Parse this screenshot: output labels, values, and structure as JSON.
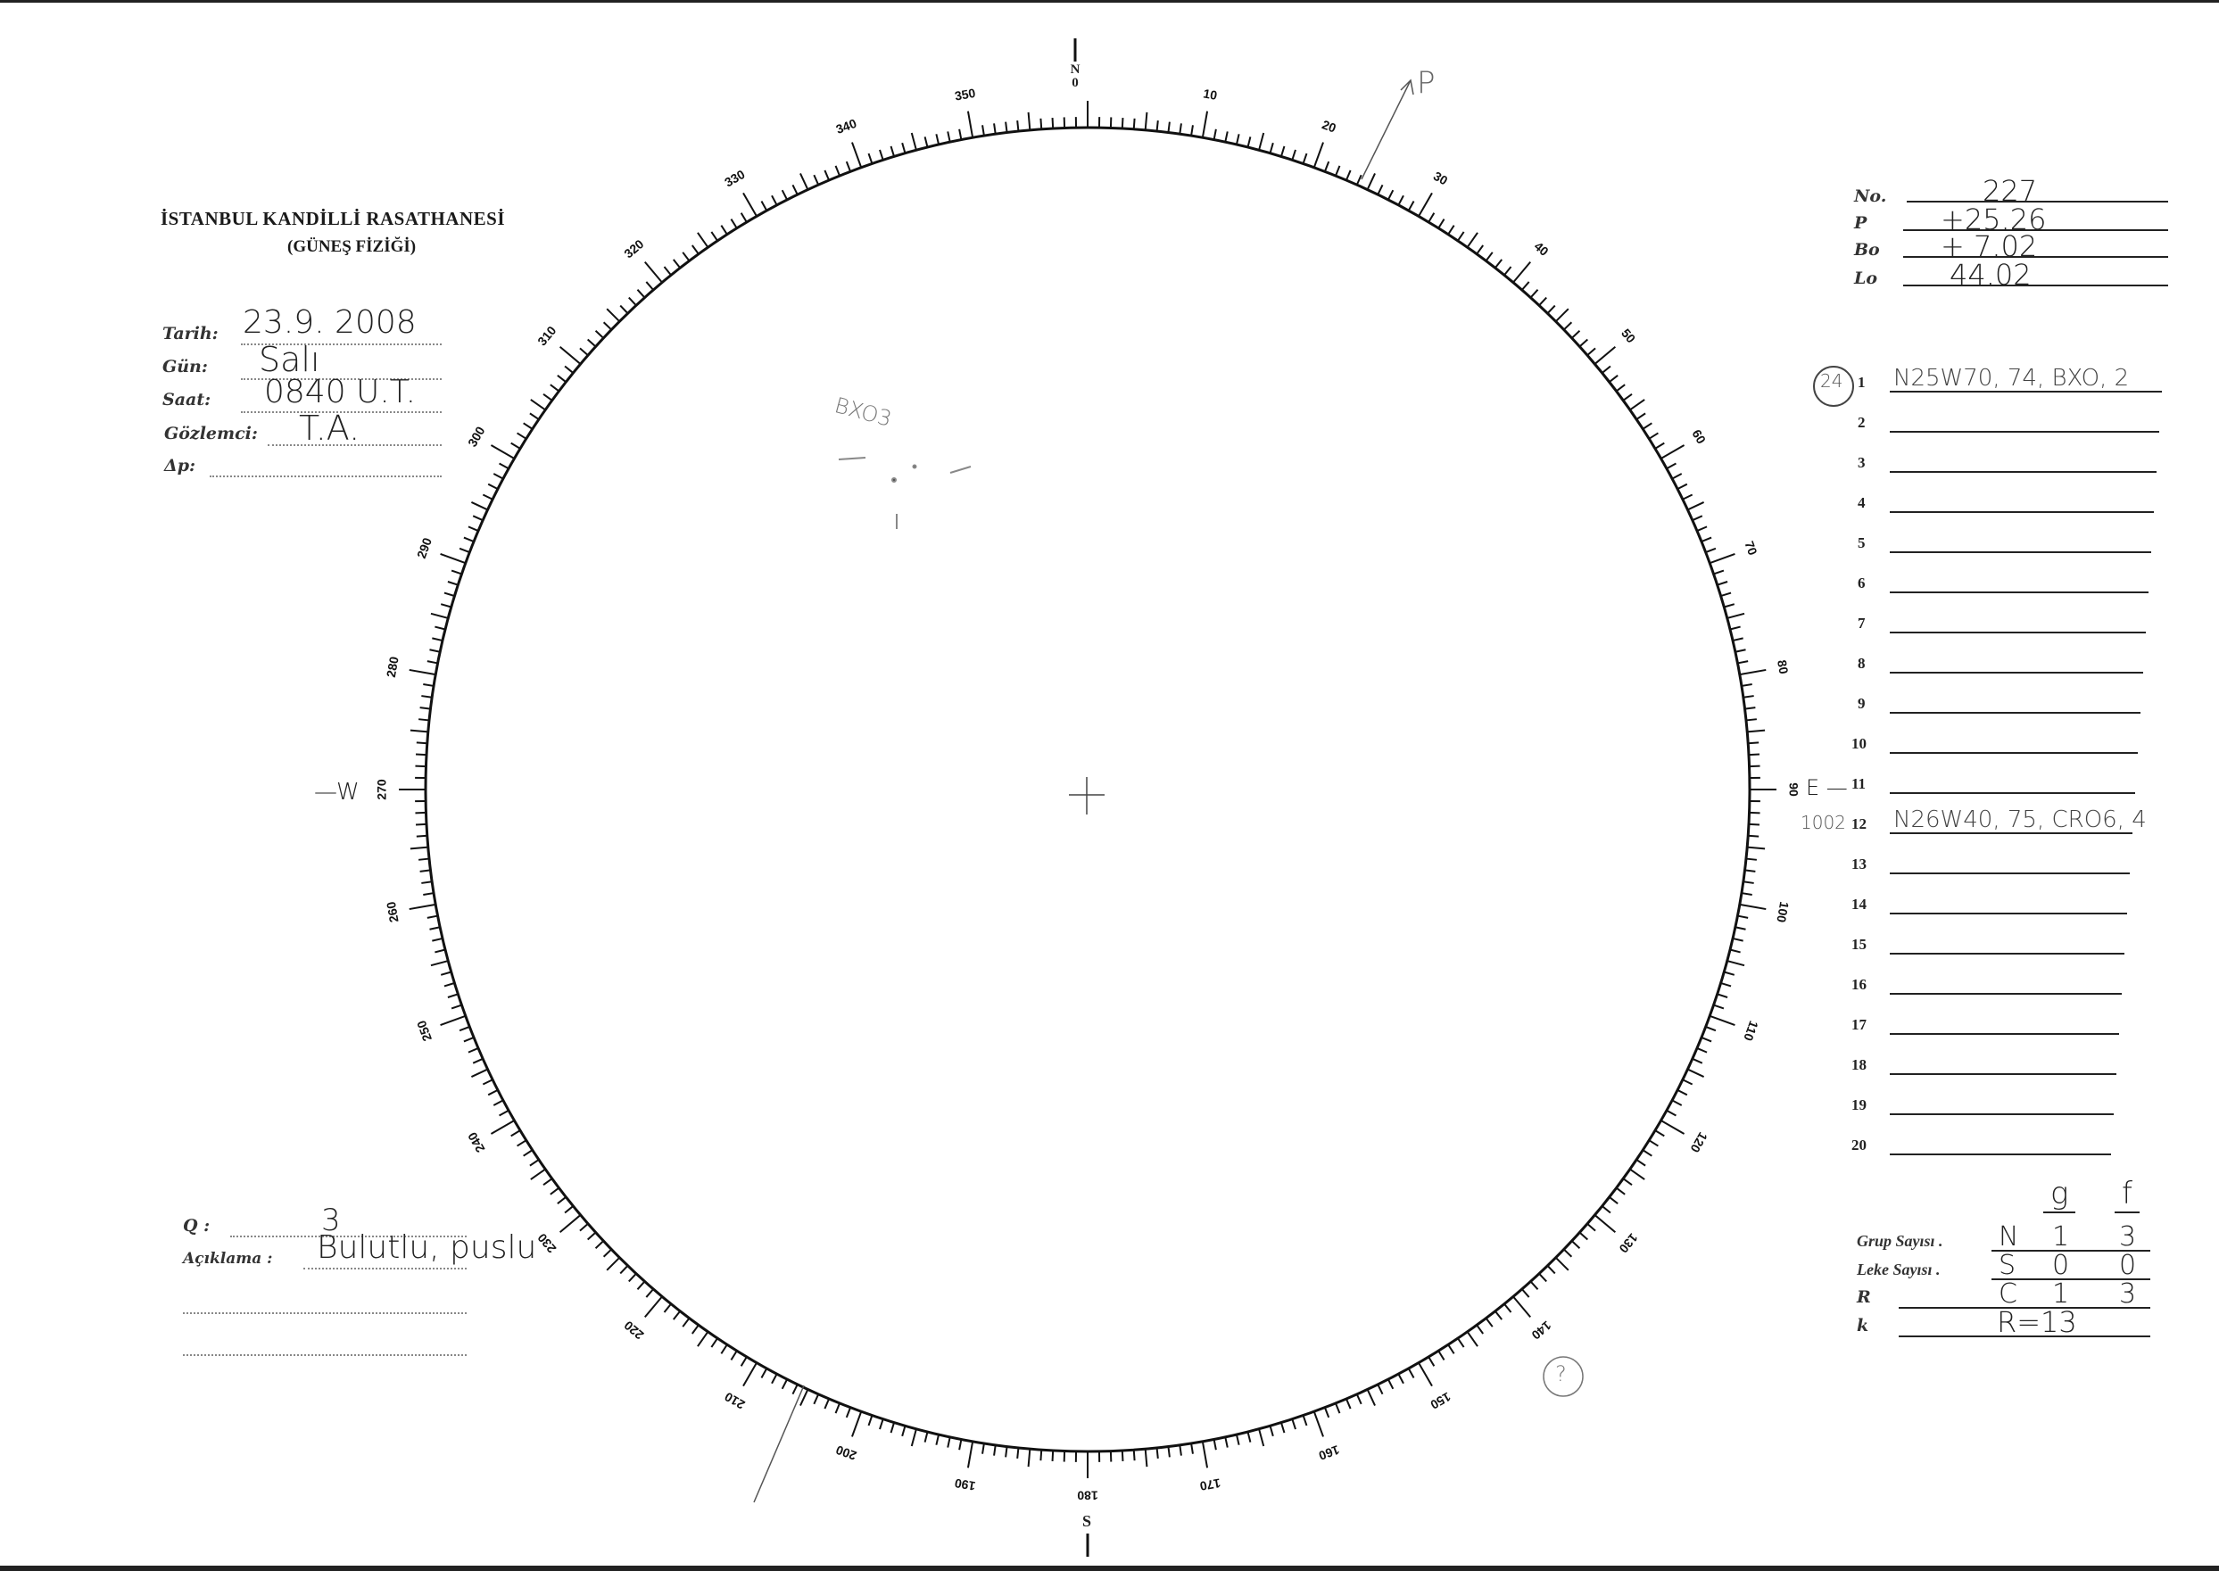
{
  "header": {
    "institution": "İSTANBUL KANDİLLİ RASATHANESİ",
    "department": "(GÜNEŞ FİZİĞİ)"
  },
  "observation": {
    "date_label": "Tarih:",
    "date_value": "23.9. 2008",
    "day_label": "Gün:",
    "day_value": "Salı",
    "time_label": "Saat:",
    "time_value": "0840 U.T.",
    "observer_label": "Gözlemci:",
    "observer_value": "T.A.",
    "delta_p_label": "Δp:",
    "delta_p_value": ""
  },
  "ephemeris": {
    "no_label": "No.",
    "no_value": "227",
    "p_label": "P",
    "p_value": "+25.26",
    "bo_label": "Bo",
    "bo_value": "+ 7.02",
    "lo_label": "Lo",
    "lo_value": "44.02"
  },
  "groups": [
    {
      "n": "1",
      "value": "N25W70, 74, BXO, 2",
      "mark": "24"
    },
    {
      "n": "2",
      "value": ""
    },
    {
      "n": "3",
      "value": ""
    },
    {
      "n": "4",
      "value": ""
    },
    {
      "n": "5",
      "value": ""
    },
    {
      "n": "6",
      "value": ""
    },
    {
      "n": "7",
      "value": ""
    },
    {
      "n": "8",
      "value": ""
    },
    {
      "n": "9",
      "value": ""
    },
    {
      "n": "10",
      "value": ""
    },
    {
      "n": "11",
      "value": ""
    },
    {
      "n": "12",
      "value": "N26W40, 75, CRO6, 4",
      "mark": "1002"
    },
    {
      "n": "13",
      "value": ""
    },
    {
      "n": "14",
      "value": ""
    },
    {
      "n": "15",
      "value": ""
    },
    {
      "n": "16",
      "value": ""
    },
    {
      "n": "17",
      "value": ""
    },
    {
      "n": "18",
      "value": ""
    },
    {
      "n": "19",
      "value": ""
    },
    {
      "n": "20",
      "value": ""
    }
  ],
  "counts": {
    "col_g": "g",
    "col_f": "f",
    "group_label": "Grup Sayısı .",
    "group_hem": "N",
    "group_g": "1",
    "group_f": "3",
    "spot_label": "Leke Sayısı .",
    "spot_hem": "S",
    "spot_g": "0",
    "spot_f": "0",
    "r_label": "R",
    "r_hem": "C",
    "r_g": "1",
    "r_f": "3",
    "k_label": "k",
    "k_value": "R=13"
  },
  "notes": {
    "q_label": "Q :",
    "q_value": "3",
    "comment_label": "Açıklama :",
    "comment_value": "Bulutlu, puslu"
  },
  "disk": {
    "north_letters": "N O",
    "north": "N",
    "north_zero": "0",
    "west": "—W",
    "east": "E —",
    "south": "S",
    "p_axis_label": "P",
    "spot_annotation": "BXO3",
    "circled_mark": "?",
    "scale_labels": [
      "0",
      "10",
      "20",
      "30",
      "40",
      "50",
      "60",
      "70",
      "80",
      "90",
      "100",
      "110",
      "120",
      "130",
      "140",
      "150",
      "160",
      "170",
      "180",
      "190",
      "200",
      "210",
      "220",
      "230",
      "240",
      "250",
      "260",
      "270",
      "280",
      "290",
      "300",
      "310",
      "320",
      "330",
      "340",
      "350"
    ]
  }
}
